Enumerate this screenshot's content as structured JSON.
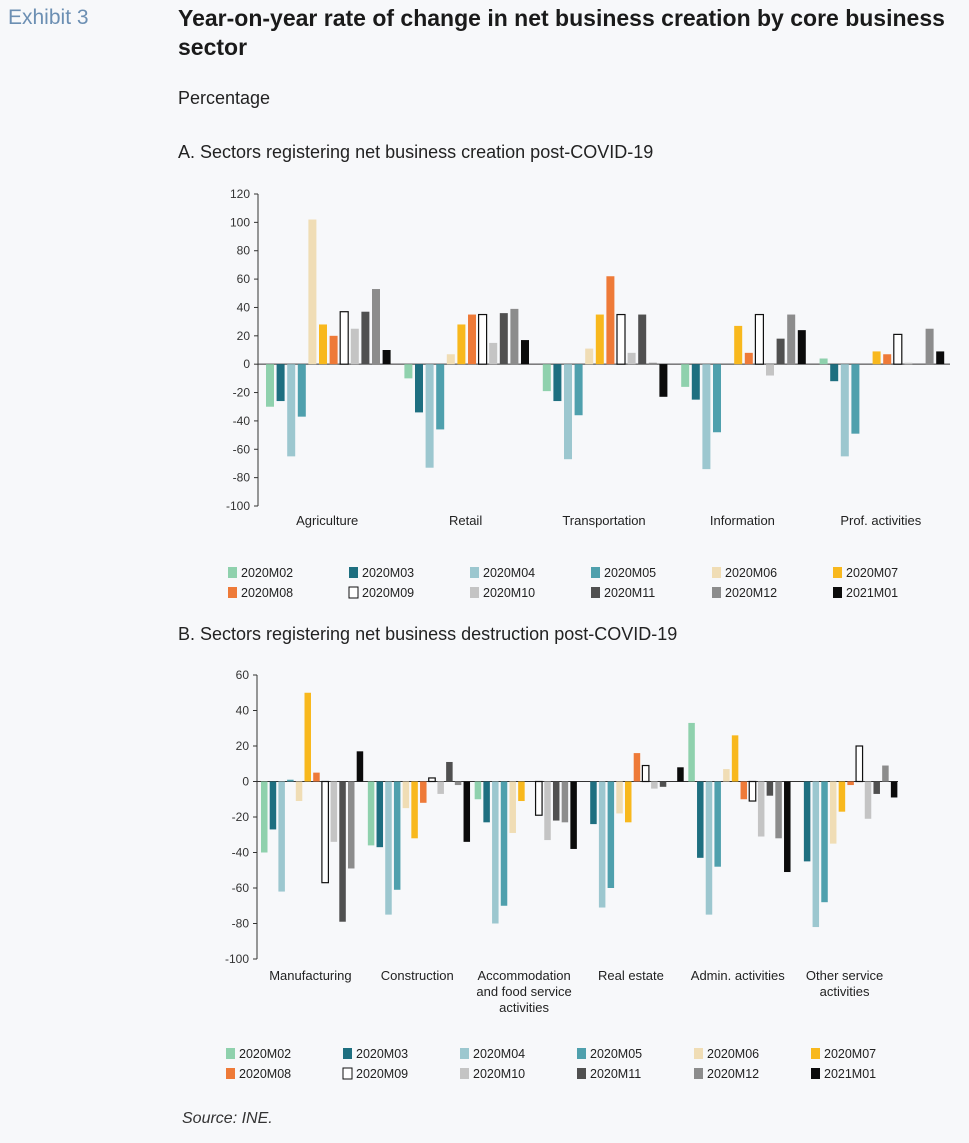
{
  "exhibit_label": "Exhibit 3",
  "title": "Year-on-year rate of change in net business creation by core business sector",
  "subtitle": "Percentage",
  "source": "Source: INE.",
  "colors": {
    "2020M02": "#8fd1ad",
    "2020M03": "#1e6f80",
    "2020M04": "#9cc7cf",
    "2020M05": "#4fa0ad",
    "2020M06": "#f0ddb5",
    "2020M07": "#f8b81d",
    "2020M08": "#ee7a38",
    "2020M09": "#ffffff",
    "2020M10": "#c4c4c4",
    "2020M11": "#505050",
    "2020M12": "#8c8c8c",
    "2021M01": "#0b0b0b"
  },
  "chart_data": [
    {
      "type": "bar",
      "panel_title": "A. Sectors registering net business creation post-COVID-19",
      "categories": [
        "Agriculture",
        "Retail",
        "Transportation",
        "Information",
        "Prof. activities"
      ],
      "ylim": [
        -100,
        120
      ],
      "yticks": [
        120,
        100,
        80,
        60,
        40,
        20,
        0,
        -20,
        -40,
        -60,
        -80,
        -100
      ],
      "series": [
        {
          "name": "2020M02",
          "values": [
            -30,
            -10,
            -19,
            -16,
            4
          ]
        },
        {
          "name": "2020M03",
          "values": [
            -26,
            -34,
            -26,
            -25,
            -12
          ]
        },
        {
          "name": "2020M04",
          "values": [
            -65,
            -73,
            -67,
            -74,
            -65
          ]
        },
        {
          "name": "2020M05",
          "values": [
            -37,
            -46,
            -36,
            -48,
            -49
          ]
        },
        {
          "name": "2020M06",
          "values": [
            102,
            7,
            11,
            0,
            0
          ]
        },
        {
          "name": "2020M07",
          "values": [
            28,
            28,
            35,
            27,
            9
          ]
        },
        {
          "name": "2020M08",
          "values": [
            20,
            35,
            62,
            8,
            7
          ]
        },
        {
          "name": "2020M09",
          "values": [
            37,
            35,
            35,
            35,
            21
          ]
        },
        {
          "name": "2020M10",
          "values": [
            25,
            15,
            8,
            -8,
            1
          ]
        },
        {
          "name": "2020M11",
          "values": [
            37,
            36,
            35,
            18,
            0
          ]
        },
        {
          "name": "2020M12",
          "values": [
            53,
            39,
            1,
            35,
            25
          ]
        },
        {
          "name": "2021M01",
          "values": [
            10,
            17,
            -23,
            24,
            9
          ]
        }
      ]
    },
    {
      "type": "bar",
      "panel_title": "B. Sectors registering net business destruction post-COVID-19",
      "categories": [
        "Manufacturing",
        "Construction",
        "Accommodation and food service activities",
        "Real estate",
        "Admin. activities",
        "Other service activities"
      ],
      "ylim": [
        -100,
        60
      ],
      "yticks": [
        60,
        40,
        20,
        0,
        -20,
        -40,
        -60,
        -80,
        -100
      ],
      "series": [
        {
          "name": "2020M02",
          "values": [
            -40,
            -36,
            -10,
            0,
            33,
            0
          ]
        },
        {
          "name": "2020M03",
          "values": [
            -27,
            -37,
            -23,
            -24,
            -43,
            -45
          ]
        },
        {
          "name": "2020M04",
          "values": [
            -62,
            -75,
            -80,
            -71,
            -75,
            -82
          ]
        },
        {
          "name": "2020M05",
          "values": [
            1,
            -61,
            -70,
            -60,
            -48,
            -68
          ]
        },
        {
          "name": "2020M06",
          "values": [
            -11,
            -15,
            -29,
            -18,
            7,
            -35
          ]
        },
        {
          "name": "2020M07",
          "values": [
            50,
            -32,
            -11,
            -23,
            26,
            -17
          ]
        },
        {
          "name": "2020M08",
          "values": [
            5,
            -12,
            0,
            16,
            -10,
            -2
          ]
        },
        {
          "name": "2020M09",
          "values": [
            -57,
            2,
            -19,
            9,
            -11,
            20
          ]
        },
        {
          "name": "2020M10",
          "values": [
            -34,
            -7,
            -33,
            -4,
            -31,
            -21
          ]
        },
        {
          "name": "2020M11",
          "values": [
            -79,
            11,
            -22,
            -3,
            -8,
            -7
          ]
        },
        {
          "name": "2020M12",
          "values": [
            -49,
            -2,
            -23,
            0,
            -32,
            9
          ]
        },
        {
          "name": "2021M01",
          "values": [
            17,
            -34,
            -38,
            8,
            -51,
            -9
          ]
        }
      ]
    }
  ]
}
